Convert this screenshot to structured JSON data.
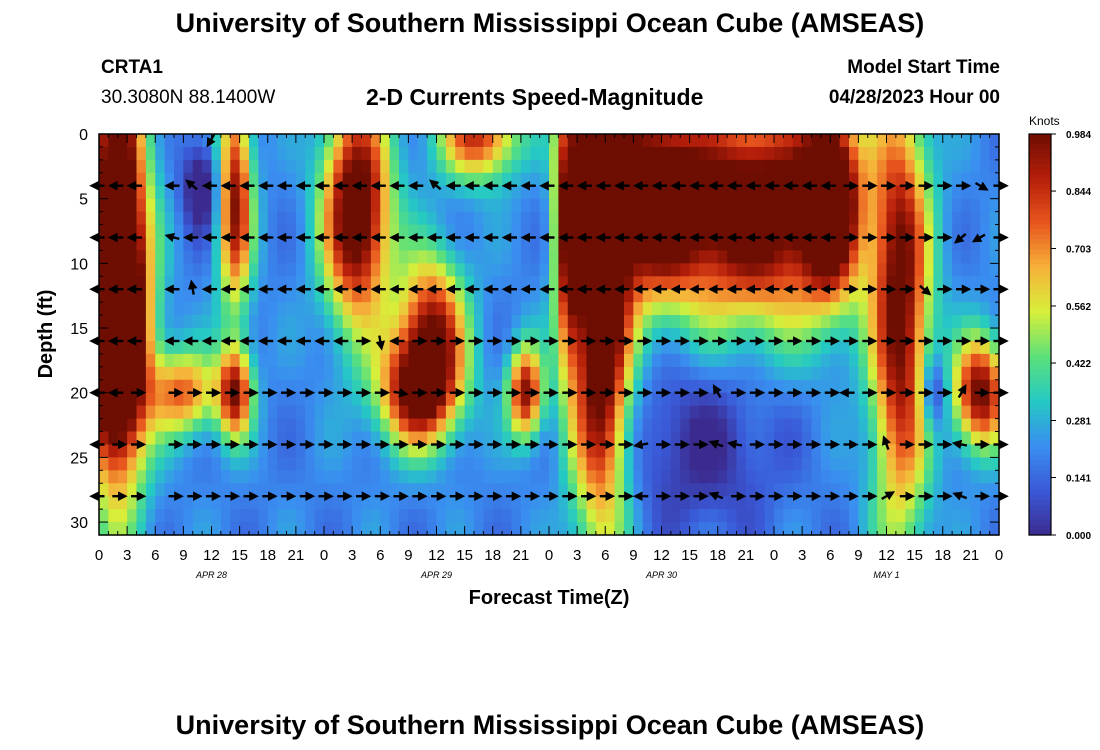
{
  "header": {
    "title": "University of Southern Mississippi Ocean Cube (AMSEAS)",
    "station_id": "CRTA1",
    "coordinates": "30.3080N  88.1400W",
    "subtitle": "2-D Currents Speed-Magnitude",
    "model_start_label": "Model Start Time",
    "model_start_value": "04/28/2023 Hour 00"
  },
  "footer": {
    "title": "University of Southern Mississippi Ocean Cube (AMSEAS)"
  },
  "colors": {
    "colormap": [
      "#3b2b8f",
      "#3a5ad8",
      "#3a8ef0",
      "#25c9c4",
      "#5ce07a",
      "#d7ef3a",
      "#f6b23a",
      "#e8561e",
      "#b51f0a",
      "#6e0d02"
    ]
  },
  "chart_data": {
    "type": "heatmap",
    "title": "2-D Currents Speed-Magnitude",
    "xlabel": "Forecast Time(Z)",
    "ylabel": "Depth (ft)",
    "x_range_hours": [
      0,
      96
    ],
    "y_range_ft": [
      0,
      31
    ],
    "x_tick_hours": [
      0,
      3,
      6,
      9,
      12,
      15,
      18,
      21,
      24,
      27,
      30,
      33,
      36,
      39,
      42,
      45,
      48,
      51,
      54,
      57,
      60,
      63,
      66,
      69,
      72,
      75,
      78,
      81,
      84,
      87,
      90,
      93,
      96
    ],
    "x_tick_labels": [
      "0",
      "3",
      "6",
      "9",
      "12",
      "15",
      "18",
      "21",
      "0",
      "3",
      "6",
      "9",
      "12",
      "15",
      "18",
      "21",
      "0",
      "3",
      "6",
      "9",
      "12",
      "15",
      "18",
      "21",
      "0",
      "3",
      "6",
      "9",
      "12",
      "15",
      "18",
      "21",
      "0"
    ],
    "date_labels": [
      {
        "hour": 12,
        "text": "APR 28"
      },
      {
        "hour": 36,
        "text": "APR 29"
      },
      {
        "hour": 60,
        "text": "APR 30"
      },
      {
        "hour": 84,
        "text": "MAY 1"
      }
    ],
    "y_ticks": [
      0,
      5,
      10,
      15,
      20,
      25,
      30
    ],
    "y_tick_labels": [
      "0",
      "5",
      "10",
      "15",
      "20",
      "25",
      "30"
    ],
    "colorbar": {
      "label": "Knots",
      "range": [
        0,
        0.984
      ],
      "tick_values": [
        0.984,
        0.844,
        0.703,
        0.562,
        0.422,
        0.281,
        0.141,
        0.0
      ],
      "tick_labels": [
        "0.984",
        "0.844",
        "0.703",
        "0.562",
        "0.422",
        "0.281",
        "0.141",
        "0.000"
      ]
    },
    "speed_blobs_knots": [
      {
        "t": 2,
        "d": 8,
        "st": 2.2,
        "sd": 13,
        "v": 1.0
      },
      {
        "t": 1.5,
        "d": 16,
        "st": 2.5,
        "sd": 6,
        "v": 0.8
      },
      {
        "t": 9,
        "d": 20,
        "st": 2.5,
        "sd": 2.3,
        "v": 0.55
      },
      {
        "t": 14.5,
        "d": 5,
        "st": 1.3,
        "sd": 6,
        "v": 0.75
      },
      {
        "t": 14.5,
        "d": 20,
        "st": 1.3,
        "sd": 2.5,
        "v": 0.7
      },
      {
        "t": 27.5,
        "d": 6,
        "st": 2.5,
        "sd": 6,
        "v": 0.95
      },
      {
        "t": 34,
        "d": 20,
        "st": 3,
        "sd": 3,
        "v": 0.75
      },
      {
        "t": 35.5,
        "d": 15,
        "st": 2.5,
        "sd": 4,
        "v": 0.7
      },
      {
        "t": 40.5,
        "d": 0,
        "st": 3,
        "sd": 2.5,
        "v": 0.65
      },
      {
        "t": 45.5,
        "d": 20,
        "st": 1.3,
        "sd": 2.5,
        "v": 0.75
      },
      {
        "t": 50,
        "d": 6,
        "st": 1,
        "sd": 8,
        "v": 0.7
      },
      {
        "t": 53.5,
        "d": 14,
        "st": 2.2,
        "sd": 12,
        "v": 1.0
      },
      {
        "t": 53,
        "d": 4,
        "st": 1.2,
        "sd": 4,
        "v": 0.8
      },
      {
        "t": 59,
        "d": 5,
        "st": 3.5,
        "sd": 5,
        "v": 0.85
      },
      {
        "t": 70,
        "d": 6,
        "st": 7,
        "sd": 6,
        "v": 0.95
      },
      {
        "t": 78,
        "d": 5,
        "st": 2,
        "sd": 5,
        "v": 0.85
      },
      {
        "t": 85.5,
        "d": 14,
        "st": 2.2,
        "sd": 12,
        "v": 0.8
      },
      {
        "t": 94,
        "d": 20,
        "st": 2,
        "sd": 3,
        "v": 0.8
      }
    ],
    "slow_blobs_knots": [
      {
        "t": 11,
        "d": 4,
        "st": 1.5,
        "sd": 2.5,
        "v": -0.3
      },
      {
        "t": 89,
        "d": 20,
        "st": 1,
        "sd": 2,
        "v": -0.3
      },
      {
        "t": 64,
        "d": 24,
        "st": 6,
        "sd": 5,
        "v": -0.2
      }
    ],
    "baseline_speed_knots": 0.2,
    "vector_depths_ft": [
      0,
      4,
      8,
      12,
      16,
      20,
      24,
      28
    ],
    "vector_hours": [
      0,
      2,
      4,
      6,
      8,
      10,
      12,
      14,
      16,
      18,
      20,
      22,
      24,
      26,
      28,
      30,
      32,
      34,
      36,
      38,
      40,
      42,
      44,
      46,
      48,
      50,
      52,
      54,
      56,
      58,
      60,
      62,
      64,
      66,
      68,
      70,
      72,
      74,
      76,
      78,
      80,
      82,
      84,
      86,
      88,
      90,
      92,
      94,
      96
    ],
    "vector_directions_deg": [
      [
        null,
        null,
        null,
        null,
        null,
        null,
        -120,
        null,
        null,
        null,
        null,
        null,
        null,
        null,
        null,
        null,
        null,
        null,
        null,
        null,
        null,
        null,
        null,
        null,
        null,
        null,
        null,
        null,
        null,
        null,
        null,
        null,
        null,
        null,
        null,
        null,
        null,
        null,
        null,
        null,
        null,
        null,
        null,
        null,
        null,
        null,
        null,
        null,
        null
      ],
      [
        180,
        180,
        180,
        null,
        180,
        140,
        180,
        180,
        180,
        180,
        180,
        180,
        180,
        180,
        180,
        180,
        180,
        180,
        140,
        180,
        180,
        180,
        180,
        180,
        180,
        180,
        180,
        180,
        180,
        180,
        180,
        180,
        180,
        180,
        180,
        180,
        180,
        180,
        180,
        180,
        0,
        0,
        0,
        0,
        0,
        0,
        0,
        -30,
        0
      ],
      [
        180,
        180,
        180,
        null,
        165,
        180,
        180,
        180,
        180,
        180,
        180,
        180,
        180,
        180,
        180,
        180,
        180,
        180,
        180,
        180,
        180,
        180,
        180,
        180,
        180,
        180,
        180,
        180,
        180,
        180,
        180,
        180,
        180,
        180,
        180,
        180,
        180,
        180,
        180,
        180,
        0,
        0,
        0,
        0,
        0,
        0,
        -140,
        -150,
        0
      ],
      [
        180,
        180,
        180,
        null,
        180,
        100,
        180,
        180,
        180,
        180,
        180,
        180,
        180,
        180,
        180,
        180,
        180,
        180,
        180,
        180,
        180,
        180,
        180,
        180,
        180,
        180,
        180,
        180,
        180,
        180,
        180,
        180,
        180,
        180,
        180,
        180,
        180,
        180,
        180,
        180,
        0,
        0,
        0,
        0,
        -40,
        0,
        0,
        0,
        0
      ],
      [
        180,
        180,
        180,
        null,
        180,
        180,
        180,
        180,
        180,
        180,
        180,
        180,
        180,
        180,
        0,
        -80,
        180,
        0,
        0,
        0,
        0,
        0,
        0,
        0,
        0,
        0,
        0,
        0,
        0,
        0,
        0,
        0,
        0,
        0,
        0,
        0,
        0,
        0,
        0,
        0,
        0,
        0,
        0,
        0,
        0,
        0,
        0,
        0,
        0
      ],
      [
        180,
        180,
        0,
        null,
        0,
        0,
        0,
        0,
        0,
        0,
        0,
        0,
        0,
        0,
        0,
        0,
        -10,
        0,
        0,
        0,
        0,
        0,
        0,
        0,
        0,
        0,
        0,
        0,
        0,
        0,
        0,
        0,
        0,
        120,
        0,
        0,
        0,
        0,
        0,
        0,
        180,
        0,
        0,
        0,
        0,
        0,
        60,
        0,
        0
      ],
      [
        180,
        0,
        0,
        null,
        0,
        0,
        0,
        0,
        0,
        0,
        0,
        0,
        0,
        0,
        0,
        0,
        0,
        0,
        0,
        0,
        0,
        0,
        0,
        0,
        0,
        0,
        0,
        0,
        0,
        -170,
        0,
        0,
        0,
        160,
        170,
        0,
        0,
        0,
        0,
        0,
        0,
        0,
        110,
        0,
        0,
        0,
        170,
        0,
        0
      ],
      [
        180,
        0,
        0,
        null,
        0,
        0,
        0,
        0,
        0,
        0,
        0,
        0,
        0,
        0,
        0,
        0,
        0,
        0,
        0,
        0,
        0,
        0,
        0,
        0,
        0,
        0,
        0,
        0,
        0,
        180,
        0,
        0,
        0,
        160,
        0,
        0,
        0,
        0,
        0,
        0,
        0,
        0,
        30,
        0,
        0,
        0,
        160,
        0,
        0
      ]
    ]
  }
}
